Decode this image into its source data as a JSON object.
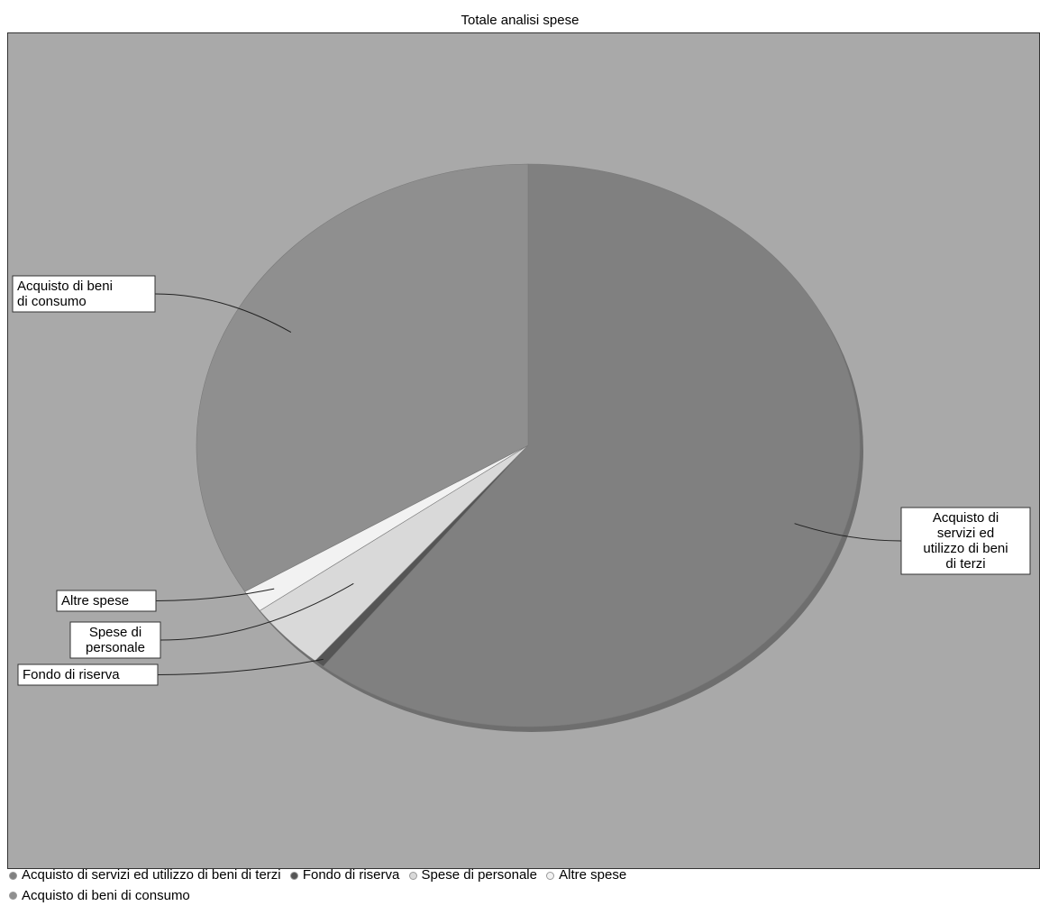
{
  "chart_data": {
    "type": "pie",
    "title": "Totale analisi spese",
    "slices": [
      {
        "label": "Acquisto di servizi ed utilizzo di beni di terzi",
        "value": 60.6,
        "color": "#808080"
      },
      {
        "label": "Fondo di riserva",
        "value": 0.5,
        "color": "#555555"
      },
      {
        "label": "Spese di personale",
        "value": 3.9,
        "color": "#d9d9d9"
      },
      {
        "label": "Altre spese",
        "value": 1.3,
        "color": "#f2f2f2"
      },
      {
        "label": "Acquisto di beni di consumo",
        "value": 33.7,
        "color": "#8f8f8f"
      }
    ],
    "callouts": [
      [
        "Acquisto di",
        "servizi ed",
        "utilizzo di beni",
        "di terzi"
      ],
      [
        "Fondo di riserva"
      ],
      [
        "Spese di",
        "personale"
      ],
      [
        "Altre spese"
      ],
      [
        "Acquisto di beni",
        "di consumo"
      ]
    ],
    "legend_position": "bottom-left"
  }
}
